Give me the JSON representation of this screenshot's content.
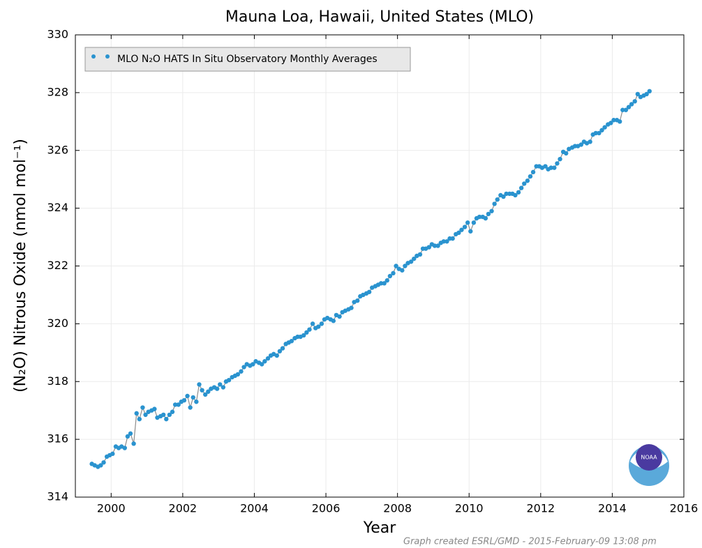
{
  "chart_data": {
    "type": "scatter",
    "title": "Mauna Loa, Hawaii, United States (MLO)",
    "x_label": "Year",
    "y_label": "(N₂O) Nitrous Oxide (nmol mol⁻¹)",
    "footer": "Graph created ESRL/GMD - 2015-February-09 13:08 pm",
    "logo_text": "NOAA",
    "xlim": [
      1999,
      2016
    ],
    "xticks": [
      2000,
      2002,
      2004,
      2006,
      2008,
      2010,
      2012,
      2014,
      2016
    ],
    "ylim": [
      314,
      330
    ],
    "yticks": [
      314,
      316,
      318,
      320,
      322,
      324,
      326,
      328,
      330
    ],
    "grid": true,
    "legend": "upper left",
    "x": [
      1999.46,
      1999.54,
      1999.63,
      1999.71,
      1999.79,
      1999.88,
      1999.96,
      2000.04,
      2000.13,
      2000.21,
      2000.29,
      2000.38,
      2000.46,
      2000.54,
      2000.63,
      2000.71,
      2000.79,
      2000.88,
      2000.96,
      2001.04,
      2001.13,
      2001.21,
      2001.29,
      2001.38,
      2001.46,
      2001.54,
      2001.63,
      2001.71,
      2001.79,
      2001.88,
      2001.96,
      2002.04,
      2002.13,
      2002.21,
      2002.29,
      2002.38,
      2002.46,
      2002.54,
      2002.63,
      2002.71,
      2002.79,
      2002.88,
      2002.96,
      2003.04,
      2003.13,
      2003.21,
      2003.29,
      2003.38,
      2003.46,
      2003.54,
      2003.63,
      2003.71,
      2003.79,
      2003.88,
      2003.96,
      2004.04,
      2004.13,
      2004.21,
      2004.29,
      2004.38,
      2004.46,
      2004.54,
      2004.63,
      2004.71,
      2004.79,
      2004.88,
      2004.96,
      2005.04,
      2005.13,
      2005.21,
      2005.29,
      2005.38,
      2005.46,
      2005.54,
      2005.63,
      2005.71,
      2005.79,
      2005.88,
      2005.96,
      2006.04,
      2006.13,
      2006.21,
      2006.29,
      2006.38,
      2006.46,
      2006.54,
      2006.63,
      2006.71,
      2006.79,
      2006.88,
      2006.96,
      2007.04,
      2007.13,
      2007.21,
      2007.29,
      2007.38,
      2007.46,
      2007.54,
      2007.63,
      2007.71,
      2007.79,
      2007.88,
      2007.96,
      2008.04,
      2008.13,
      2008.21,
      2008.29,
      2008.38,
      2008.46,
      2008.54,
      2008.63,
      2008.71,
      2008.79,
      2008.88,
      2008.96,
      2009.04,
      2009.13,
      2009.21,
      2009.29,
      2009.38,
      2009.46,
      2009.54,
      2009.63,
      2009.71,
      2009.79,
      2009.88,
      2009.96,
      2010.04,
      2010.13,
      2010.21,
      2010.29,
      2010.38,
      2010.46,
      2010.54,
      2010.63,
      2010.71,
      2010.79,
      2010.88,
      2010.96,
      2011.04,
      2011.13,
      2011.21,
      2011.29,
      2011.38,
      2011.46,
      2011.54,
      2011.63,
      2011.71,
      2011.79,
      2011.88,
      2011.96,
      2012.04,
      2012.13,
      2012.21,
      2012.29,
      2012.38,
      2012.46,
      2012.54,
      2012.63,
      2012.71,
      2012.79,
      2012.88,
      2012.96,
      2013.04,
      2013.13,
      2013.21,
      2013.29,
      2013.38,
      2013.46,
      2013.54,
      2013.63,
      2013.71,
      2013.79,
      2013.88,
      2013.96,
      2014.04,
      2014.13,
      2014.21,
      2014.29,
      2014.38,
      2014.46,
      2014.54,
      2014.63,
      2014.71,
      2014.79,
      2014.88,
      2014.96,
      2015.04
    ],
    "series": [
      {
        "name": "MLO N₂O HATS In Situ Observatory Monthly Averages",
        "color": "#2a93cf",
        "line_color": "#8c8c8c",
        "values": [
          315.15,
          315.1,
          315.05,
          315.1,
          315.2,
          315.4,
          315.45,
          315.5,
          315.75,
          315.7,
          315.75,
          315.7,
          316.1,
          316.2,
          315.85,
          316.9,
          316.7,
          317.1,
          316.85,
          316.95,
          317.0,
          317.05,
          316.75,
          316.8,
          316.85,
          316.7,
          316.85,
          316.95,
          317.2,
          317.2,
          317.3,
          317.35,
          317.5,
          317.1,
          317.45,
          317.3,
          317.9,
          317.7,
          317.55,
          317.65,
          317.75,
          317.8,
          317.75,
          317.9,
          317.8,
          318.0,
          318.05,
          318.15,
          318.2,
          318.25,
          318.35,
          318.5,
          318.6,
          318.55,
          318.6,
          318.7,
          318.65,
          318.6,
          318.7,
          318.8,
          318.9,
          318.95,
          318.9,
          319.05,
          319.15,
          319.3,
          319.35,
          319.4,
          319.5,
          319.55,
          319.55,
          319.6,
          319.7,
          319.8,
          320.0,
          319.85,
          319.9,
          320.0,
          320.15,
          320.2,
          320.15,
          320.1,
          320.3,
          320.25,
          320.4,
          320.45,
          320.5,
          320.55,
          320.75,
          320.8,
          320.95,
          321.0,
          321.05,
          321.1,
          321.25,
          321.3,
          321.35,
          321.4,
          321.4,
          321.5,
          321.65,
          321.75,
          322.0,
          321.9,
          321.85,
          322.0,
          322.1,
          322.15,
          322.25,
          322.35,
          322.4,
          322.6,
          322.6,
          322.65,
          322.75,
          322.7,
          322.7,
          322.8,
          322.85,
          322.85,
          322.95,
          322.95,
          323.1,
          323.15,
          323.25,
          323.35,
          323.5,
          323.2,
          323.5,
          323.65,
          323.7,
          323.7,
          323.65,
          323.8,
          323.9,
          324.15,
          324.3,
          324.45,
          324.4,
          324.5,
          324.5,
          324.5,
          324.45,
          324.55,
          324.7,
          324.85,
          324.95,
          325.1,
          325.25,
          325.45,
          325.45,
          325.4,
          325.45,
          325.35,
          325.4,
          325.4,
          325.55,
          325.7,
          325.95,
          325.9,
          326.05,
          326.1,
          326.15,
          326.15,
          326.2,
          326.3,
          326.25,
          326.3,
          326.55,
          326.6,
          326.6,
          326.7,
          326.8,
          326.9,
          326.95,
          327.05,
          327.05,
          327.0,
          327.4,
          327.4,
          327.5,
          327.6,
          327.7,
          327.95,
          327.85,
          327.9,
          327.95,
          328.05
        ]
      }
    ]
  }
}
